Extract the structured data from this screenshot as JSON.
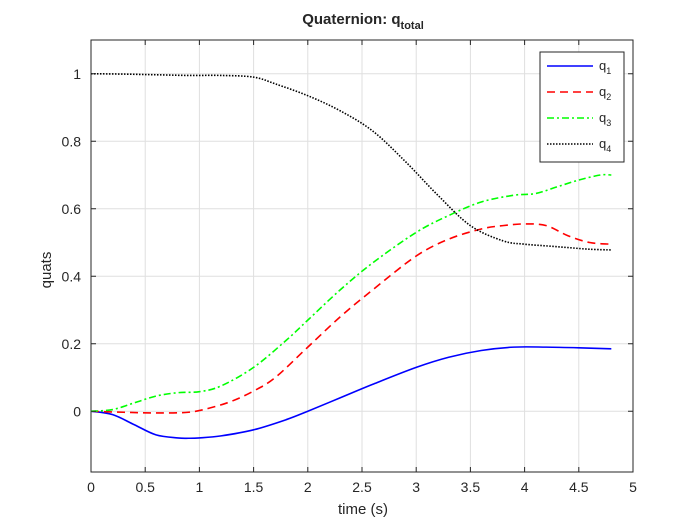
{
  "chart_data": {
    "type": "line",
    "title": "Quaternion: q",
    "title_subscript": "total",
    "xlabel": "time (s)",
    "ylabel": "quats",
    "xlim": [
      0,
      5
    ],
    "ylim": [
      -0.18,
      1.1
    ],
    "xticks": [
      0,
      0.5,
      1,
      1.5,
      2,
      2.5,
      3,
      3.5,
      4,
      4.5,
      5
    ],
    "xtick_labels": [
      "0",
      "0.5",
      "1",
      "1.5",
      "2",
      "2.5",
      "3",
      "3.5",
      "4",
      "4.5",
      "5"
    ],
    "yticks": [
      0,
      0.2,
      0.4,
      0.6,
      0.8,
      1
    ],
    "ytick_labels": [
      "0",
      "0.2",
      "0.4",
      "0.6",
      "0.8",
      "1"
    ],
    "grid": true,
    "legend_placement": "top-right",
    "series": [
      {
        "name": "q",
        "subscript": "1",
        "color": "#0000ff",
        "dash": "solid",
        "x": [
          0,
          0.2,
          0.4,
          0.6,
          0.8,
          0.9,
          1.0,
          1.2,
          1.5,
          1.8,
          2.0,
          2.3,
          2.6,
          3.0,
          3.3,
          3.6,
          3.9,
          4.2,
          4.5,
          4.8
        ],
        "y": [
          0,
          -0.01,
          -0.04,
          -0.07,
          -0.079,
          -0.08,
          -0.079,
          -0.073,
          -0.055,
          -0.025,
          0.0,
          0.04,
          0.08,
          0.13,
          0.16,
          0.18,
          0.19,
          0.19,
          0.188,
          0.185
        ]
      },
      {
        "name": "q",
        "subscript": "2",
        "color": "#ff0000",
        "dash": "dashed",
        "x": [
          0,
          0.3,
          0.6,
          0.9,
          1.1,
          1.3,
          1.5,
          1.7,
          2.0,
          2.3,
          2.6,
          3.0,
          3.3,
          3.6,
          3.8,
          4.0,
          4.2,
          4.4,
          4.6,
          4.8
        ],
        "y": [
          0,
          -0.003,
          -0.005,
          -0.003,
          0.01,
          0.03,
          0.06,
          0.1,
          0.19,
          0.28,
          0.36,
          0.46,
          0.51,
          0.54,
          0.55,
          0.555,
          0.55,
          0.52,
          0.5,
          0.495
        ]
      },
      {
        "name": "q",
        "subscript": "3",
        "color": "#00ff00",
        "dash": "dashdot",
        "x": [
          0,
          0.2,
          0.4,
          0.6,
          0.8,
          1.0,
          1.2,
          1.5,
          1.8,
          2.0,
          2.3,
          2.6,
          3.0,
          3.3,
          3.6,
          3.9,
          4.1,
          4.3,
          4.5,
          4.7,
          4.8
        ],
        "y": [
          0,
          0.005,
          0.025,
          0.045,
          0.055,
          0.058,
          0.075,
          0.13,
          0.21,
          0.27,
          0.36,
          0.44,
          0.53,
          0.58,
          0.62,
          0.64,
          0.645,
          0.665,
          0.685,
          0.7,
          0.7
        ]
      },
      {
        "name": "q",
        "subscript": "4",
        "color": "#000000",
        "dash": "dotted",
        "x": [
          0,
          0.3,
          0.6,
          0.9,
          1.2,
          1.5,
          1.7,
          2.0,
          2.3,
          2.6,
          2.9,
          3.2,
          3.5,
          3.8,
          4.0,
          4.2,
          4.4,
          4.6,
          4.8
        ],
        "y": [
          1.0,
          0.999,
          0.997,
          0.995,
          0.995,
          0.99,
          0.97,
          0.935,
          0.89,
          0.83,
          0.74,
          0.64,
          0.55,
          0.505,
          0.495,
          0.49,
          0.485,
          0.48,
          0.478
        ]
      }
    ]
  }
}
